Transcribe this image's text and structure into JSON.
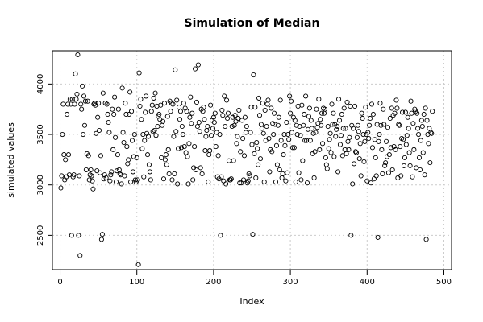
{
  "chart_data": {
    "type": "scatter",
    "title": "Simulation of Median",
    "xlabel": "Index",
    "ylabel": "simulated values",
    "xlim": [
      -10,
      510
    ],
    "ylim": [
      2160,
      4330
    ],
    "x_ticks": [
      0,
      100,
      200,
      300,
      400,
      500
    ],
    "y_ticks": [
      2500,
      3000,
      3500,
      4000
    ],
    "grid": "dashed",
    "marker": "open-circle",
    "colors": {
      "points": "#000000",
      "grid": "#cccccc",
      "axes": "#000000"
    },
    "values": [
      2970,
      3090,
      3500,
      3800,
      3300,
      3050,
      3250,
      3080,
      3700,
      3800,
      3300,
      3100,
      3850,
      3800,
      2500,
      3850,
      3080,
      3100,
      3800,
      4100,
      3850,
      3900,
      4290,
      2500,
      3090,
      2300,
      3800,
      3750,
      3980,
      3500,
      3880,
      3590,
      3830,
      3150,
      3310,
      3830,
      3290,
      3050,
      3100,
      3150,
      3090,
      3040,
      2960,
      3800,
      3810,
      3790,
      3510,
      3140,
      3670,
      3810,
      3540,
      3120,
      3290,
      2460,
      2510,
      3910,
      3060,
      3100,
      3810,
      3070,
      3800,
      3700,
      3620,
      3520,
      3040,
      3100,
      3130,
      3750,
      3350,
      3700,
      3870,
      3470,
      3030,
      3140,
      3300,
      3750,
      3150,
      3110,
      3100,
      3010,
      3960,
      3520,
      3420,
      3090,
      3810,
      3700,
      3380,
      3210,
      3250,
      3700,
      3920,
      3030,
      3730,
      3440,
      3130,
      3280,
      3500,
      3050,
      3030,
      3270,
      3050,
      2210,
      4110,
      3780,
      3850,
      3650,
      3360,
      3500,
      3080,
      3440,
      3720,
      3880,
      3510,
      3300,
      3480,
      3200,
      3130,
      3050,
      3730,
      3790,
      3530,
      3860,
      3540,
      3910,
      3490,
      3780,
      3580,
      3680,
      3700,
      3650,
      3790,
      3270,
      3590,
      3630,
      3060,
      3810,
      3250,
      3300,
      3200,
      3680,
      3350,
      3110,
      3830,
      3730,
      3810,
      3050,
      3800,
      3480,
      3110,
      4140,
      3530,
      3840,
      3010,
      3360,
      3770,
      3650,
      3730,
      3370,
      3580,
      3500,
      3810,
      3380,
      3760,
      3320,
      3730,
      3280,
      3010,
      3410,
      3670,
      3870,
      3610,
      3710,
      3050,
      3170,
      3380,
      4150,
      3150,
      3820,
      3580,
      4190,
      3620,
      3530,
      3170,
      3750,
      3110,
      3730,
      3770,
      3650,
      3340,
      3480,
      3540,
      3580,
      3030,
      3300,
      3340,
      3790,
      3490,
      3640,
      3560,
      3670,
      3620,
      3710,
      3380,
      3520,
      3080,
      3290,
      3060,
      3500,
      2500,
      3080,
      3740,
      3690,
      3040,
      3880,
      3580,
      3010,
      3840,
      3660,
      3710,
      3240,
      3050,
      3050,
      3060,
      3580,
      3670,
      3240,
      3590,
      3690,
      3630,
      3410,
      3480,
      3660,
      3740,
      3020,
      3330,
      3020,
      3640,
      3460,
      3050,
      3290,
      3670,
      3520,
      3580,
      3020,
      3040,
      3110,
      3090,
      3520,
      3770,
      3400,
      2510,
      4090,
      3310,
      3770,
      3070,
      3420,
      3360,
      3200,
      3860,
      3690,
      3260,
      3600,
      3560,
      3810,
      3510,
      3030,
      3740,
      3440,
      3580,
      3800,
      3840,
      3460,
      3130,
      3350,
      3760,
      3330,
      3610,
      3500,
      3710,
      3600,
      3030,
      3390,
      3200,
      3590,
      3670,
      3150,
      3840,
      3440,
      3070,
      3110,
      3300,
      3500,
      3390,
      3040,
      3620,
      3120,
      3500,
      3450,
      3880,
      3710,
      3830,
      3520,
      3370,
      3670,
      3370,
      3640,
      3030,
      3590,
      3500,
      3780,
      3120,
      3580,
      3490,
      3050,
      3790,
      3240,
      3590,
      3700,
      3440,
      3880,
      3440,
      3020,
      3550,
      3680,
      3760,
      3440,
      3640,
      3560,
      3310,
      3510,
      3070,
      3330,
      3520,
      3750,
      3570,
      3610,
      3850,
      3350,
      3650,
      3590,
      3710,
      3410,
      3760,
      3710,
      3750,
      3270,
      3200,
      3160,
      3580,
      3360,
      3450,
      3510,
      3320,
      3800,
      3600,
      3710,
      3280,
      3600,
      3480,
      3550,
      3580,
      3130,
      3850,
      3640,
      3400,
      3490,
      3700,
      3290,
      3560,
      3760,
      3350,
      3560,
      3310,
      3820,
      3430,
      3350,
      3470,
      3780,
      2500,
      3590,
      3010,
      3560,
      3210,
      3780,
      3330,
      3320,
      3470,
      3590,
      3530,
      3260,
      3410,
      3090,
      3710,
      3660,
      3500,
      3230,
      3430,
      3770,
      3500,
      3040,
      3520,
      3460,
      3590,
      3660,
      3020,
      3800,
      3370,
      3700,
      3060,
      3450,
      3270,
      3090,
      3600,
      2480,
      3430,
      3500,
      3810,
      3590,
      3350,
      3110,
      3750,
      3600,
      3190,
      3220,
      3430,
      3280,
      3570,
      3120,
      3300,
      3660,
      3370,
      3760,
      3150,
      3690,
      3380,
      3710,
      3350,
      3840,
      3760,
      3070,
      3600,
      3590,
      3380,
      3090,
      3460,
      3720,
      3450,
      3190,
      3270,
      3720,
      3400,
      3490,
      3670,
      3560,
      3320,
      3190,
      3830,
      3710,
      3080,
      3610,
      3350,
      3750,
      3730,
      3170,
      3710,
      3560,
      3500,
      3270,
      3150,
      3440,
      3640,
      3580,
      3320,
      3700,
      3100,
      3760,
      2460,
      3640,
      3500,
      3410,
      3560,
      3220,
      3520,
      3510,
      3730
    ]
  }
}
